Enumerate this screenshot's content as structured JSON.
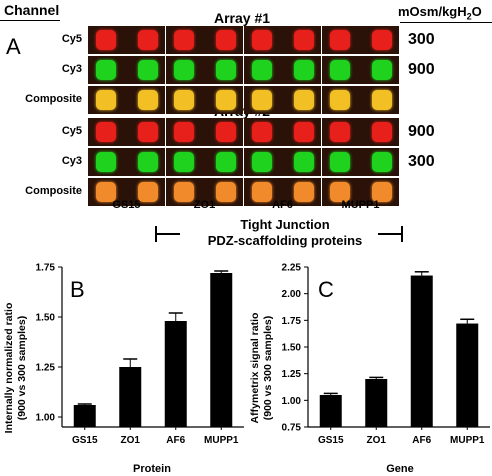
{
  "header": {
    "channel": "Channel",
    "units": "mOsm/kgH",
    "units_sub": "2",
    "units_tail": "O"
  },
  "panelA": {
    "letter": "A",
    "array1_title": "Array #1",
    "array2_title": "Array #2",
    "rows": [
      "Cy5",
      "Cy3",
      "Composite"
    ],
    "array1_osm": [
      "300",
      "900"
    ],
    "array2_osm": [
      "900",
      "300"
    ],
    "proteins": [
      "GS15",
      "ZO1",
      "AF6",
      "MUPP1"
    ],
    "group_line1": "Tight Junction",
    "group_line2": "PDZ-scaffolding proteins",
    "colors": {
      "cy5": "#e8201c",
      "cy3": "#1ed21e",
      "composite": "#f2c024",
      "composite2": "#f08a2a",
      "background": "#2a1208"
    }
  },
  "chart_data": [
    {
      "type": "bar",
      "panel": "B",
      "categories": [
        "GS15",
        "ZO1",
        "AF6",
        "MUPP1"
      ],
      "values": [
        1.06,
        1.25,
        1.48,
        1.72
      ],
      "errors": [
        0.005,
        0.04,
        0.04,
        0.01
      ],
      "ylim": [
        0.95,
        1.75
      ],
      "yticks": [
        "1.00",
        "1.25",
        "1.50",
        "1.75"
      ],
      "ylabel": "Internally normalized ratio",
      "ylabel2": "(900 vs 300 samples)",
      "xlabel": "Protein"
    },
    {
      "type": "bar",
      "panel": "C",
      "categories": [
        "GS15",
        "ZO1",
        "AF6",
        "MUPP1"
      ],
      "values": [
        1.05,
        1.2,
        2.17,
        1.72
      ],
      "errors": [
        0.015,
        0.015,
        0.035,
        0.04
      ],
      "ylim": [
        0.75,
        2.25
      ],
      "yticks": [
        "0.75",
        "1.00",
        "1.25",
        "1.50",
        "1.75",
        "2.00",
        "2.25"
      ],
      "ylabel": "Affymetrix signal ratio",
      "ylabel2": "(900 vs 300 samples)",
      "xlabel": "Gene"
    }
  ]
}
